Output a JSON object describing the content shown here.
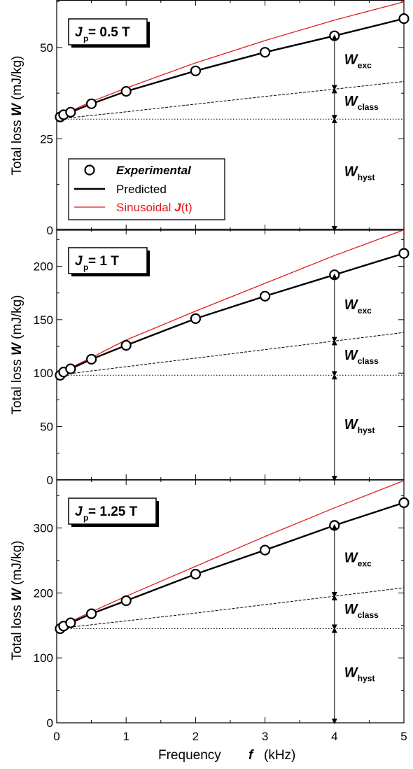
{
  "x_axis": {
    "label_text": "Frequency",
    "label_symbol": "f",
    "label_unit": "(kHz)",
    "tick_labels": [
      "0",
      "1",
      "2",
      "3",
      "4",
      "5"
    ]
  },
  "y_axis_label": {
    "prefix": "Total loss",
    "symbol": "W",
    "unit": "(mJ/kg)"
  },
  "legend": {
    "experimental": "Experimental",
    "predicted": "Predicted",
    "sinusoidal_prefix": "Sinusoidal ",
    "sinusoidal_symbol": "J",
    "sinusoidal_suffix": "(t)"
  },
  "components": {
    "exc": {
      "symbol": "W",
      "sub": "exc"
    },
    "class": {
      "symbol": "W",
      "sub": "class"
    },
    "hyst": {
      "symbol": "W",
      "sub": "hyst"
    }
  },
  "colors": {
    "predicted": "#000000",
    "sinusoidal": "#e41a1c",
    "sinusoidal_legend_text": "#e41a1c",
    "markers": "#000000",
    "dashed": "#000000"
  },
  "chart_data": [
    {
      "type": "line",
      "panel_label": {
        "symbol": "J",
        "sub": "p",
        "value": " = 0.5 T"
      },
      "xlim": [
        0,
        5
      ],
      "ylim": [
        0,
        63
      ],
      "ytick_labels": [
        "0",
        "25",
        "50"
      ],
      "yticks": [
        0,
        25,
        50
      ],
      "experimental": {
        "x": [
          0.05,
          0.1,
          0.2,
          0.5,
          1,
          2,
          3,
          4,
          5
        ],
        "y": [
          31,
          31.6,
          32.3,
          34.6,
          38,
          43.6,
          48.7,
          53.2,
          57.9
        ]
      },
      "predicted": {
        "x": [
          0,
          0.05,
          0.1,
          0.2,
          0.5,
          1,
          2,
          3,
          4,
          5
        ],
        "y": [
          30.4,
          31,
          31.6,
          32.3,
          34.6,
          38,
          43.6,
          48.7,
          53.2,
          57.9
        ]
      },
      "sinusoidal": {
        "x": [
          0,
          0.05,
          0.1,
          0.2,
          0.5,
          1,
          2,
          3,
          4,
          5
        ],
        "y": [
          30.4,
          31.1,
          31.7,
          32.6,
          35.2,
          38.9,
          45.8,
          51.9,
          57.5,
          62.5
        ]
      },
      "class_line": {
        "x": [
          0,
          1,
          2,
          3,
          4,
          5
        ],
        "y": [
          30.4,
          32.4,
          34.5,
          36.6,
          38.6,
          40.7
        ]
      },
      "hyst_level": 30.4,
      "arrow_x": 4,
      "arrow_bounds": {
        "exc_top": 53.2,
        "class_top": 38.6,
        "hyst_top": 30.4,
        "bottom": 0
      },
      "show_legend": true
    },
    {
      "type": "line",
      "panel_label": {
        "symbol": "J",
        "sub": "p",
        "value": " = 1 T"
      },
      "xlim": [
        0,
        5
      ],
      "ylim": [
        0,
        235
      ],
      "ytick_labels": [
        "0",
        "50",
        "100",
        "150",
        "200"
      ],
      "yticks": [
        0,
        50,
        100,
        150,
        200
      ],
      "experimental": {
        "x": [
          0.05,
          0.1,
          0.2,
          0.5,
          1,
          2,
          3,
          4,
          5
        ],
        "y": [
          98,
          101,
          104,
          113,
          126,
          151,
          172,
          192,
          212
        ]
      },
      "predicted": {
        "x": [
          0,
          0.05,
          0.1,
          0.2,
          0.5,
          1,
          2,
          3,
          4,
          5
        ],
        "y": [
          95,
          98,
          101,
          104,
          113,
          126,
          151,
          172,
          192,
          212
        ]
      },
      "sinusoidal": {
        "x": [
          0,
          0.05,
          0.1,
          0.2,
          0.5,
          1,
          2,
          3,
          4,
          5
        ],
        "y": [
          95,
          98.5,
          101.5,
          105,
          114.5,
          131,
          158,
          184,
          210,
          234
        ]
      },
      "class_line": {
        "x": [
          0,
          1,
          2,
          3,
          4,
          5
        ],
        "y": [
          98,
          106,
          114,
          122,
          130,
          138
        ]
      },
      "hyst_level": 98,
      "arrow_x": 4,
      "arrow_bounds": {
        "exc_top": 192,
        "class_top": 130,
        "hyst_top": 98,
        "bottom": 0
      },
      "show_legend": false
    },
    {
      "type": "line",
      "panel_label": {
        "symbol": "J",
        "sub": "p",
        "value": " = 1.25 T"
      },
      "xlim": [
        0,
        5
      ],
      "ylim": [
        0,
        375
      ],
      "ytick_labels": [
        "0",
        "100",
        "200",
        "300"
      ],
      "yticks": [
        0,
        100,
        200,
        300
      ],
      "experimental": {
        "x": [
          0.05,
          0.1,
          0.2,
          0.5,
          1,
          2,
          3,
          4,
          5
        ],
        "y": [
          145,
          149,
          154,
          168,
          188,
          229,
          266,
          304,
          339
        ]
      },
      "predicted": {
        "x": [
          0,
          0.05,
          0.1,
          0.2,
          0.5,
          1,
          2,
          3,
          4,
          5
        ],
        "y": [
          140,
          145,
          149,
          154,
          168,
          188,
          229,
          266,
          304,
          339
        ]
      },
      "sinusoidal": {
        "x": [
          0,
          0.05,
          0.1,
          0.2,
          0.5,
          1,
          2,
          3,
          4,
          5
        ],
        "y": [
          140,
          146,
          150,
          156,
          171,
          195,
          241,
          287,
          331,
          373
        ]
      },
      "class_line": {
        "x": [
          0,
          1,
          2,
          3,
          4,
          5
        ],
        "y": [
          145,
          157,
          169,
          182,
          195,
          208
        ]
      },
      "hyst_level": 145,
      "arrow_x": 4,
      "arrow_bounds": {
        "exc_top": 304,
        "class_top": 195,
        "hyst_top": 145,
        "bottom": 0
      },
      "show_legend": false
    }
  ]
}
